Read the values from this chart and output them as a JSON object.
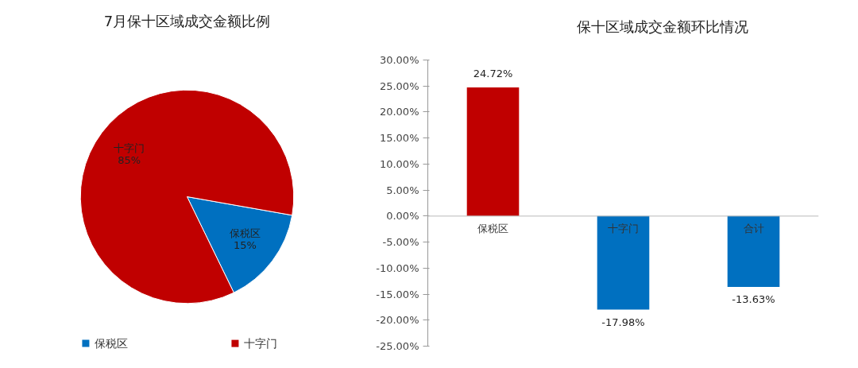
{
  "chart_data": [
    {
      "type": "pie",
      "title": "7月保十区域成交金额比例",
      "categories": [
        "保税区",
        "十字门"
      ],
      "values": [
        15,
        85
      ],
      "colors": [
        "#0070c0",
        "#c00000"
      ],
      "value_labels": [
        "15%",
        "85%"
      ],
      "legend": "bottom"
    },
    {
      "type": "bar",
      "title": "保十区域成交金额环比情况",
      "categories": [
        "保税区",
        "十字门",
        "合计"
      ],
      "values": [
        24.72,
        -17.98,
        -13.63
      ],
      "colors": [
        "#c00000",
        "#0070c0",
        "#0070c0"
      ],
      "value_labels": [
        "24.72%",
        "-17.98%",
        "-13.63%"
      ],
      "ylim": [
        -25,
        30
      ],
      "yticks": [
        {
          "value": -25,
          "label": "-25.00%"
        },
        {
          "value": -20,
          "label": "-20.00%"
        },
        {
          "value": -15,
          "label": "-15.00%"
        },
        {
          "value": -10,
          "label": "-10.00%"
        },
        {
          "value": -5,
          "label": "-5.00%"
        },
        {
          "value": 0,
          "label": "0.00%"
        },
        {
          "value": 5,
          "label": "5.00%"
        },
        {
          "value": 10,
          "label": "10.00%"
        },
        {
          "value": 15,
          "label": "15.00%"
        },
        {
          "value": 20,
          "label": "20.00%"
        },
        {
          "value": 25,
          "label": "25.00%"
        },
        {
          "value": 30,
          "label": "30.00%"
        }
      ],
      "grid": false,
      "legend": false
    }
  ]
}
